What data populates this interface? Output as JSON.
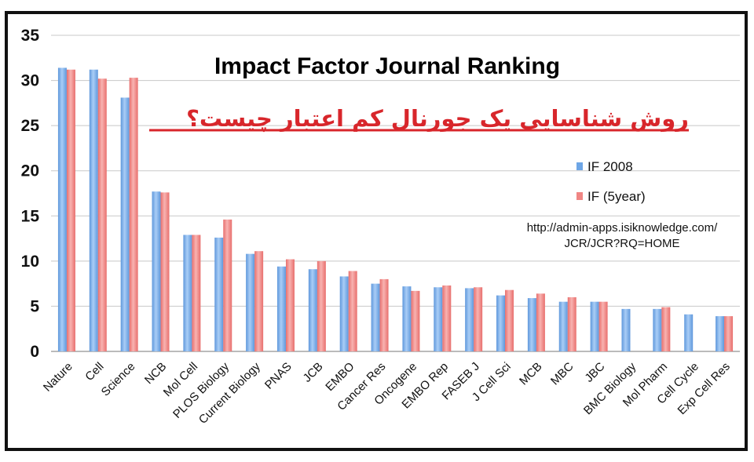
{
  "chart_data": {
    "type": "bar",
    "title": "Impact Factor Journal Ranking",
    "subtitle": "روش شناسایی یک جورنال کم اعتبار چیست؟",
    "source_note": [
      "http://admin-apps.isiknowledge.com/",
      "JCR/JCR?RQ=HOME"
    ],
    "categories": [
      "Nature",
      "Cell",
      "Science",
      "NCB",
      "Mol Cell",
      "PLOS Biology",
      "Current Biology",
      "PNAS",
      "JCB",
      "EMBO",
      "Cancer Res",
      "Oncogene",
      "EMBO Rep",
      "FASEB J",
      "J Cell Sci",
      "MCB",
      "MBC",
      "JBC",
      "BMC Biology",
      "Mol Pharm",
      "Cell Cycle",
      "Exp Cell Res"
    ],
    "series": [
      {
        "name": "IF 2008",
        "color": "#6ea6e6",
        "values": [
          31.4,
          31.2,
          28.1,
          17.7,
          12.9,
          12.6,
          10.8,
          9.4,
          9.1,
          8.3,
          7.5,
          7.2,
          7.1,
          7.0,
          6.2,
          5.9,
          5.5,
          5.5,
          4.7,
          4.7,
          4.1,
          3.9
        ]
      },
      {
        "name": "IF (5year)",
        "color": "#f08684",
        "values": [
          31.2,
          30.2,
          30.3,
          17.6,
          12.9,
          14.6,
          11.1,
          10.2,
          10.0,
          8.9,
          8.0,
          6.7,
          7.3,
          7.1,
          6.8,
          6.4,
          6.0,
          5.5,
          null,
          4.9,
          null,
          3.9
        ]
      }
    ],
    "yticks": [
      "0",
      "5",
      "10",
      "15",
      "20",
      "25",
      "30",
      "35"
    ],
    "ylim": [
      0,
      35
    ],
    "grid": true,
    "legend_position": "right"
  }
}
